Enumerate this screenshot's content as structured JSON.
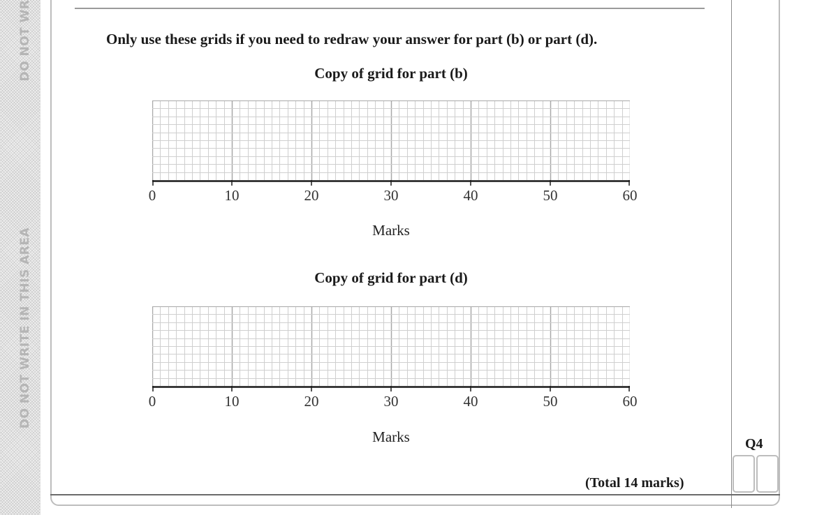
{
  "margin": {
    "warning_top": "DO NOT WR",
    "warning_bottom": "DO NOT WRITE IN THIS AREA"
  },
  "instruction": "Only use these grids if you need to redraw your answer for part (b) or part (d).",
  "grids": [
    {
      "title": "Copy of grid for part (b)",
      "axis_label": "Marks",
      "ticks": [
        "0",
        "10",
        "20",
        "30",
        "40",
        "50",
        "60"
      ]
    },
    {
      "title": "Copy of grid for part (d)",
      "axis_label": "Marks",
      "ticks": [
        "0",
        "10",
        "20",
        "30",
        "40",
        "50",
        "60"
      ]
    }
  ],
  "total_marks": "(Total 14 marks)",
  "question_label": "Q4",
  "colors": {
    "grid_minor": "#cfcfcf",
    "grid_major": "#a8a8a8",
    "axis": "#1a1a1a"
  }
}
